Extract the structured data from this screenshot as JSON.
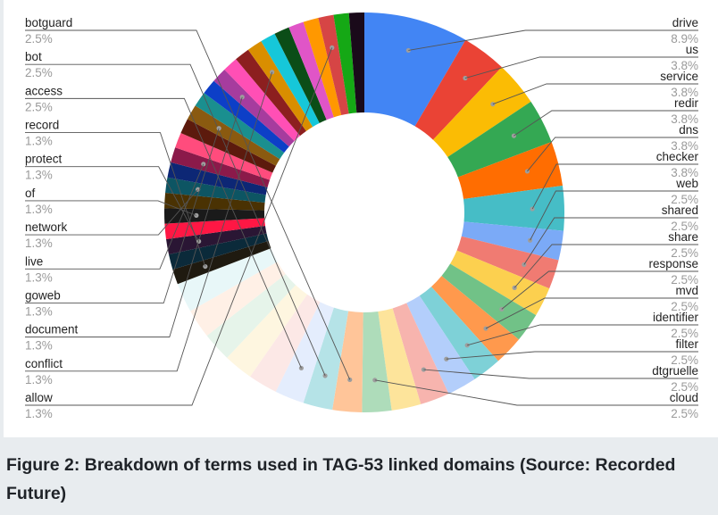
{
  "chart_data": {
    "type": "pie",
    "donut": true,
    "slices": [
      {
        "label": "drive",
        "value": 8.9,
        "value_label": "8.9%",
        "color": "#4285f4"
      },
      {
        "label": "us",
        "value": 3.8,
        "value_label": "3.8%",
        "color": "#ea4335"
      },
      {
        "label": "service",
        "value": 3.8,
        "value_label": "3.8%",
        "color": "#fbbc04"
      },
      {
        "label": "redir",
        "value": 3.8,
        "value_label": "3.8%",
        "color": "#34a853"
      },
      {
        "label": "dns",
        "value": 3.8,
        "value_label": "3.8%",
        "color": "#ff6d01"
      },
      {
        "label": "checker",
        "value": 3.8,
        "value_label": "3.8%",
        "color": "#46bdc6"
      },
      {
        "label": "web",
        "value": 2.5,
        "value_label": "2.5%",
        "color": "#7baaf7"
      },
      {
        "label": "shared",
        "value": 2.5,
        "value_label": "2.5%",
        "color": "#f07b72"
      },
      {
        "label": "share",
        "value": 2.5,
        "value_label": "2.5%",
        "color": "#fcd04f"
      },
      {
        "label": "response",
        "value": 2.5,
        "value_label": "2.5%",
        "color": "#71c287"
      },
      {
        "label": "mvd",
        "value": 2.5,
        "value_label": "2.5%",
        "color": "#ff994d"
      },
      {
        "label": "identifier",
        "value": 2.5,
        "value_label": "2.5%",
        "color": "#7ed1d7"
      },
      {
        "label": "filter",
        "value": 2.5,
        "value_label": "2.5%",
        "color": "#b3cefb"
      },
      {
        "label": "dtgruelle",
        "value": 2.5,
        "value_label": "2.5%",
        "color": "#f7b4ae"
      },
      {
        "label": "",
        "value": 2.5,
        "value_label": "",
        "color": "#fde49b"
      },
      {
        "label": "cloud",
        "value": 2.5,
        "value_label": "2.5%",
        "color": "#aedcba"
      },
      {
        "label": "botguard",
        "value": 2.5,
        "value_label": "2.5%",
        "color": "#ffc599"
      },
      {
        "label": "bot",
        "value": 2.5,
        "value_label": "2.5%",
        "color": "#b5e3e7"
      },
      {
        "label": "access",
        "value": 2.5,
        "value_label": "2.5%",
        "color": "#e4edfd"
      },
      {
        "label": "",
        "value": 2.5,
        "value_label": "",
        "color": "#fce8e6"
      },
      {
        "label": "",
        "value": 2.5,
        "value_label": "",
        "color": "#fef6e0"
      },
      {
        "label": "",
        "value": 2.5,
        "value_label": "",
        "color": "#e6f4ea"
      },
      {
        "label": "",
        "value": 2.5,
        "value_label": "",
        "color": "#fff0e6"
      },
      {
        "label": "",
        "value": 2.5,
        "value_label": "",
        "color": "#e8f7f8"
      },
      {
        "label": "record",
        "value": 1.3,
        "value_label": "1.3%",
        "color": "#1f1a10"
      },
      {
        "label": "",
        "value": 1.3,
        "value_label": "",
        "color": "#0b2a3a"
      },
      {
        "label": "protect",
        "value": 1.3,
        "value_label": "1.3%",
        "color": "#2a1634"
      },
      {
        "label": "",
        "value": 1.3,
        "value_label": "",
        "color": "#ff1744"
      },
      {
        "label": "of",
        "value": 1.3,
        "value_label": "1.3%",
        "color": "#1a1a1a"
      },
      {
        "label": "",
        "value": 1.3,
        "value_label": "",
        "color": "#4a3203"
      },
      {
        "label": "network",
        "value": 1.3,
        "value_label": "1.3%",
        "color": "#0d5563"
      },
      {
        "label": "",
        "value": 1.3,
        "value_label": "",
        "color": "#0d2775"
      },
      {
        "label": "live",
        "value": 1.3,
        "value_label": "1.3%",
        "color": "#8b1a4a"
      },
      {
        "label": "",
        "value": 1.3,
        "value_label": "",
        "color": "#ff4c7d"
      },
      {
        "label": "",
        "value": 1.3,
        "value_label": "",
        "color": "#5c1a0d"
      },
      {
        "label": "goweb",
        "value": 1.3,
        "value_label": "1.3%",
        "color": "#8a5a10"
      },
      {
        "label": "",
        "value": 1.3,
        "value_label": "",
        "color": "#1a8f8f"
      },
      {
        "label": "",
        "value": 1.3,
        "value_label": "",
        "color": "#0d3fc7"
      },
      {
        "label": "document",
        "value": 1.3,
        "value_label": "1.3%",
        "color": "#a63c9e"
      },
      {
        "label": "",
        "value": 1.3,
        "value_label": "",
        "color": "#ff4fb5"
      },
      {
        "label": "",
        "value": 1.3,
        "value_label": "",
        "color": "#8c1f1f"
      },
      {
        "label": "conflict",
        "value": 1.3,
        "value_label": "1.3%",
        "color": "#d98e00"
      },
      {
        "label": "",
        "value": 1.3,
        "value_label": "",
        "color": "#16c7d9"
      },
      {
        "label": "",
        "value": 1.3,
        "value_label": "",
        "color": "#0b4d17"
      },
      {
        "label": "",
        "value": 1.3,
        "value_label": "",
        "color": "#e055c7"
      },
      {
        "label": "",
        "value": 1.3,
        "value_label": "",
        "color": "#ff9800"
      },
      {
        "label": "allow",
        "value": 1.3,
        "value_label": "1.3%",
        "color": "#d64545"
      },
      {
        "label": "",
        "value": 1.3,
        "value_label": "",
        "color": "#15a815"
      },
      {
        "label": "",
        "value": 1.3,
        "value_label": "",
        "color": "#1a0a1a"
      }
    ],
    "legend": "callout labels on left and right sides"
  },
  "caption": "Figure 2: Breakdown of terms used in TAG-53 linked domains (Source: Recorded Future)"
}
